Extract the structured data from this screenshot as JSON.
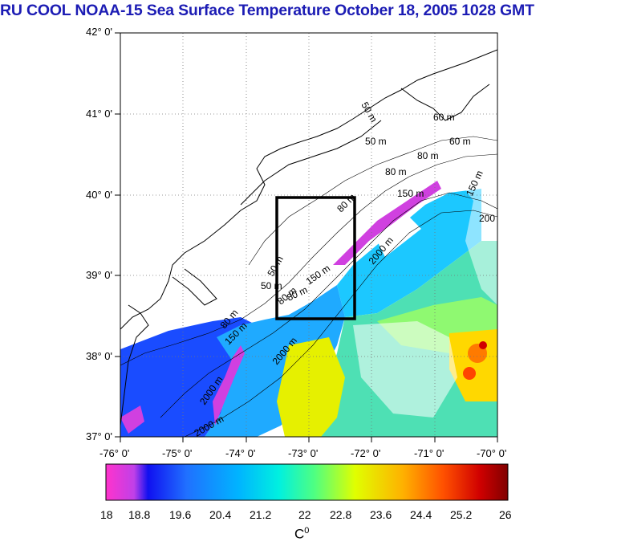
{
  "title": "RU COOL  NOAA-15 Sea Surface Temperature October 18, 2005 1028 GMT",
  "latitude_labels": [
    "42° 0'",
    "41° 0'",
    "40° 0'",
    "39° 0'",
    "38° 0'",
    "37° 0'"
  ],
  "longitude_labels": [
    "-76° 0'",
    "-75° 0'",
    "-74° 0'",
    "-73° 0'",
    "-72° 0'",
    "-71° 0'",
    "-70° 0'"
  ],
  "isobath_labels": [
    "50 m",
    "60 m",
    "50 m",
    "80 m",
    "80 m",
    "150 m",
    "150 m",
    "200",
    "80 m",
    "2000 m",
    "60 m",
    "50 m",
    "80 m",
    "150 m",
    "2000 m",
    "150 m",
    "80 m",
    "2000 m",
    "2000 m",
    "80 m",
    "50 m"
  ],
  "colorbar": {
    "ticks": [
      "18",
      "18.8",
      "19.6",
      "20.4",
      "21.2",
      "22",
      "22.8",
      "23.6",
      "24.4",
      "25.2",
      "26"
    ],
    "unit": "C",
    "unit_sup": "0",
    "colors": [
      "#ff33cc",
      "#c040e8",
      "#1010f0",
      "#2070ff",
      "#00b4ff",
      "#00f0e0",
      "#50ff80",
      "#e0ff00",
      "#ffb000",
      "#ff5000",
      "#d00000",
      "#800000"
    ]
  },
  "study_box": {
    "lon_range": [
      -73.5,
      -72.3
    ],
    "lat_range": [
      38.5,
      40.0
    ]
  }
}
